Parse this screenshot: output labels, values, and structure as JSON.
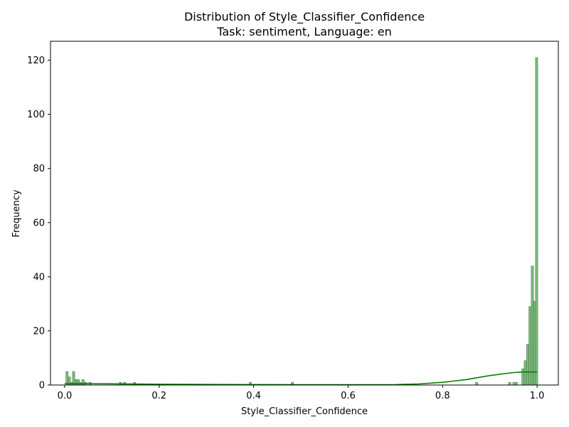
{
  "chart_data": {
    "type": "bar",
    "title": "Distribution of Style_Classifier_Confidence",
    "subtitle": "Task: sentiment, Language: en",
    "xlabel": "Style_Classifier_Confidence",
    "ylabel": "Frequency",
    "xlim": [
      -0.03,
      1.045
    ],
    "ylim": [
      0,
      127
    ],
    "x_ticks": [
      "0.0",
      "0.2",
      "0.4",
      "0.6",
      "0.8",
      "1.0"
    ],
    "y_ticks": [
      "0",
      "20",
      "40",
      "60",
      "80",
      "100",
      "120"
    ],
    "grid": false,
    "bar_color": "#5fa55f",
    "kde_color": "#008000",
    "bins": [
      {
        "x": 0.005,
        "count": 5
      },
      {
        "x": 0.01,
        "count": 3
      },
      {
        "x": 0.015,
        "count": 1
      },
      {
        "x": 0.019,
        "count": 5
      },
      {
        "x": 0.024,
        "count": 2
      },
      {
        "x": 0.029,
        "count": 2
      },
      {
        "x": 0.034,
        "count": 1
      },
      {
        "x": 0.039,
        "count": 2
      },
      {
        "x": 0.044,
        "count": 1
      },
      {
        "x": 0.054,
        "count": 1
      },
      {
        "x": 0.118,
        "count": 1
      },
      {
        "x": 0.127,
        "count": 1
      },
      {
        "x": 0.148,
        "count": 1
      },
      {
        "x": 0.393,
        "count": 1
      },
      {
        "x": 0.482,
        "count": 1
      },
      {
        "x": 0.872,
        "count": 1
      },
      {
        "x": 0.942,
        "count": 1
      },
      {
        "x": 0.951,
        "count": 1
      },
      {
        "x": 0.956,
        "count": 1
      },
      {
        "x": 0.97,
        "count": 6
      },
      {
        "x": 0.975,
        "count": 9
      },
      {
        "x": 0.98,
        "count": 15
      },
      {
        "x": 0.985,
        "count": 29
      },
      {
        "x": 0.99,
        "count": 44
      },
      {
        "x": 0.994,
        "count": 31
      },
      {
        "x": 0.999,
        "count": 121
      }
    ],
    "kde": {
      "x": [
        0.0,
        0.05,
        0.1,
        0.2,
        0.3,
        0.4,
        0.5,
        0.6,
        0.7,
        0.75,
        0.8,
        0.85,
        0.9,
        0.95,
        0.97,
        1.0
      ],
      "y": [
        0.5,
        0.5,
        0.45,
        0.3,
        0.2,
        0.15,
        0.1,
        0.1,
        0.15,
        0.4,
        1.0,
        2.0,
        3.5,
        4.6,
        4.8,
        4.8
      ]
    }
  }
}
